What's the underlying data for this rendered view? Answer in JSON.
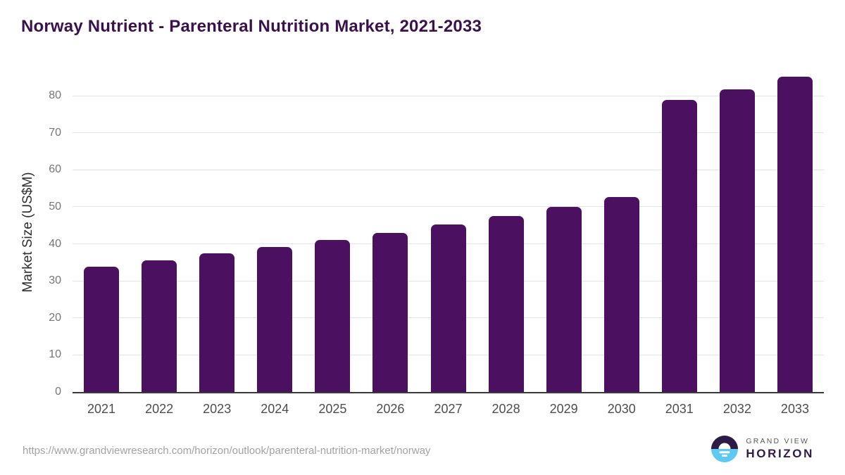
{
  "page": {
    "title": "Norway Nutrient - Parenteral Nutrition Market, 2021-2033",
    "source_url": "https://www.grandviewresearch.com/horizon/outlook/parenteral-nutrition-market/norway"
  },
  "logo": {
    "brand": "GRAND VIEW",
    "product": "HORIZON",
    "icon": "sunrise-horizon-circle-icon"
  },
  "chart_data": {
    "type": "bar",
    "title": "Norway Nutrient - Parenteral Nutrition Market, 2021-2033",
    "categories": [
      "2021",
      "2022",
      "2023",
      "2024",
      "2025",
      "2026",
      "2027",
      "2028",
      "2029",
      "2030",
      "2031",
      "2032",
      "2033"
    ],
    "values": [
      33.8,
      35.6,
      37.4,
      39.1,
      41.0,
      43.0,
      45.2,
      47.5,
      50.0,
      52.7,
      78.8,
      81.8,
      85.2
    ],
    "xlabel": "",
    "ylabel": "Market Size (US$M)",
    "yticks": [
      0,
      10,
      20,
      30,
      40,
      50,
      60,
      70,
      80
    ],
    "ylim": [
      0,
      80
    ],
    "grid": true,
    "legend_position": "none",
    "bar_color": "#4b1160"
  },
  "colors": {
    "title": "#3a114d",
    "bar": "#4b1160",
    "grid": "#e4e4e4",
    "axis_line": "#3a3a3a",
    "ytick_label": "#757575",
    "xtick_label": "#4d4d4d",
    "ylabel": "#2e2e2e",
    "url": "#a2a2a2",
    "logo_dark": "#2c1b47",
    "logo_blue": "#5ec8f2",
    "logo_gray": "#58585a",
    "logo_purple": "#321a4e"
  }
}
